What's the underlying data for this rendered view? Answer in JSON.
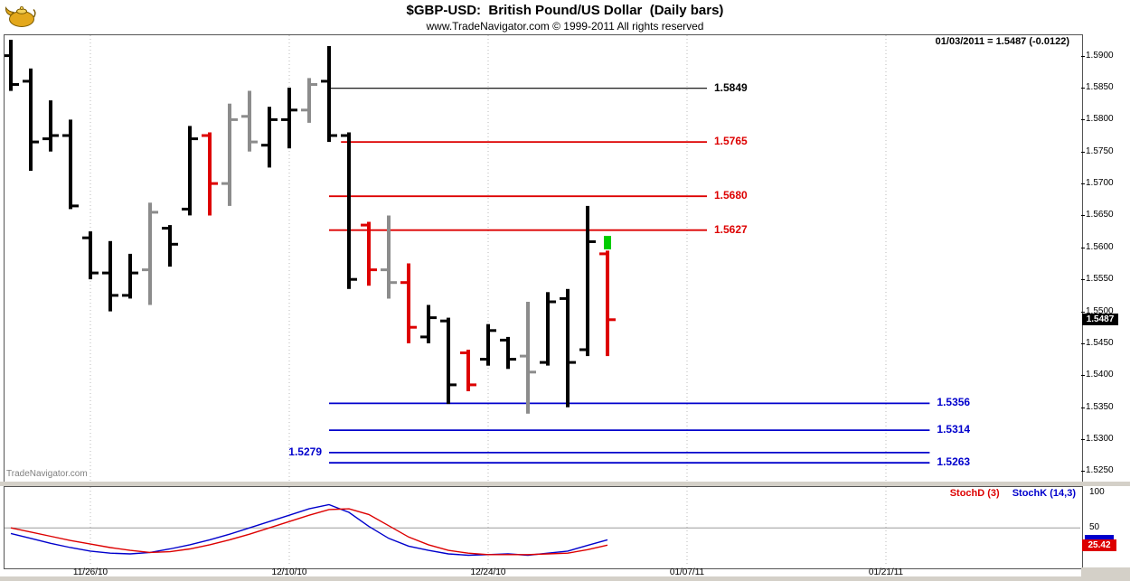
{
  "header": {
    "title": "$GBP-USD:  British Pound/US Dollar  (Daily bars)",
    "copyright": "www.TradeNavigator.com © 1999-2011 All rights reserved",
    "quote_readout": "01/03/2011 = 1.5487 (-0.0122)"
  },
  "main_panel": {
    "watermark": "TradeNavigator.com",
    "price_box": "1.5487"
  },
  "stoch_panel": {
    "stochd_label": "StochD (3)",
    "stochk_label": "StochK (14,3)",
    "value_box": "25.42"
  },
  "chart_data": [
    {
      "type": "ohlc-bar",
      "symbol": "$GBP-USD",
      "timeframe": "Daily bars",
      "ylim": [
        1.5235,
        1.5932
      ],
      "y_ticks": [
        "1.5900",
        "1.5850",
        "1.5800",
        "1.5750",
        "1.5700",
        "1.5650",
        "1.5600",
        "1.5550",
        "1.5500",
        "1.5450",
        "1.5400",
        "1.5350",
        "1.5300",
        "1.5250"
      ],
      "x_tick_labels": [
        "11/26/10",
        "12/10/10",
        "12/24/10",
        "01/07/11",
        "01/21/11"
      ],
      "x_tick_indices": [
        4,
        14,
        24,
        34,
        44
      ],
      "bars_format": [
        "date",
        "open",
        "high",
        "low",
        "close",
        "color"
      ],
      "bars": [
        [
          "11/22/10",
          1.59,
          1.5925,
          1.5845,
          1.5855,
          "black"
        ],
        [
          "11/23/10",
          1.586,
          1.588,
          1.572,
          1.5765,
          "black"
        ],
        [
          "11/24/10",
          1.577,
          1.583,
          1.575,
          1.5775,
          "black"
        ],
        [
          "11/25/10",
          1.5775,
          1.58,
          1.566,
          1.5665,
          "black"
        ],
        [
          "11/26/10",
          1.5615,
          1.5625,
          1.555,
          1.556,
          "black"
        ],
        [
          "11/29/10",
          1.556,
          1.561,
          1.55,
          1.5525,
          "black"
        ],
        [
          "11/30/10",
          1.5525,
          1.559,
          1.552,
          1.556,
          "black"
        ],
        [
          "12/01/10",
          1.5565,
          1.567,
          1.551,
          1.5655,
          "gray"
        ],
        [
          "12/02/10",
          1.563,
          1.5635,
          1.557,
          1.5605,
          "black"
        ],
        [
          "12/03/10",
          1.566,
          1.579,
          1.565,
          1.577,
          "black"
        ],
        [
          "12/06/10",
          1.5775,
          1.578,
          1.565,
          1.57,
          "red"
        ],
        [
          "12/07/10",
          1.57,
          1.5825,
          1.5665,
          1.58,
          "gray"
        ],
        [
          "12/08/10",
          1.5805,
          1.5845,
          1.575,
          1.5765,
          "gray"
        ],
        [
          "12/09/10",
          1.576,
          1.582,
          1.5725,
          1.58,
          "black"
        ],
        [
          "12/10/10",
          1.58,
          1.585,
          1.5755,
          1.5815,
          "black"
        ],
        [
          "12/13/10",
          1.5815,
          1.5865,
          1.5795,
          1.5855,
          "gray"
        ],
        [
          "12/14/10",
          1.586,
          1.5915,
          1.5765,
          1.5775,
          "black"
        ],
        [
          "12/15/10",
          1.5775,
          1.578,
          1.5535,
          1.555,
          "black"
        ],
        [
          "12/16/10",
          1.5635,
          1.564,
          1.554,
          1.5565,
          "red"
        ],
        [
          "12/17/10",
          1.5565,
          1.565,
          1.552,
          1.5545,
          "gray"
        ],
        [
          "12/20/10",
          1.5545,
          1.5575,
          1.545,
          1.5475,
          "red"
        ],
        [
          "12/21/10",
          1.546,
          1.551,
          1.545,
          1.549,
          "black"
        ],
        [
          "12/22/10",
          1.5485,
          1.549,
          1.5355,
          1.5385,
          "black"
        ],
        [
          "12/23/10",
          1.5435,
          1.544,
          1.5375,
          1.5385,
          "red"
        ],
        [
          "12/24/10",
          1.5425,
          1.548,
          1.5415,
          1.547,
          "black"
        ],
        [
          "12/27/10",
          1.5455,
          1.546,
          1.541,
          1.5425,
          "black"
        ],
        [
          "12/28/10",
          1.543,
          1.5515,
          1.534,
          1.5405,
          "gray"
        ],
        [
          "12/29/10",
          1.542,
          1.553,
          1.5415,
          1.5515,
          "black"
        ],
        [
          "12/30/10",
          1.552,
          1.5535,
          1.535,
          1.542,
          "black"
        ],
        [
          "12/31/10",
          1.544,
          1.5665,
          1.543,
          1.5609,
          "black"
        ],
        [
          "01/03/11",
          1.559,
          1.5595,
          1.543,
          1.5487,
          "red"
        ]
      ],
      "bar_colors": {
        "black": "#000000",
        "red": "#dd0000",
        "gray": "#8c8c8c"
      },
      "hlines": [
        {
          "price": 1.5849,
          "label": "1.5849",
          "color": "#000000",
          "from": 16,
          "to": 35,
          "side": "right",
          "width": 1.2
        },
        {
          "price": 1.5765,
          "label": "1.5765",
          "color": "#dd0000",
          "from": 16.6,
          "to": 35,
          "side": "right",
          "width": 1.8
        },
        {
          "price": 1.568,
          "label": "1.5680",
          "color": "#dd0000",
          "from": 16,
          "to": 35,
          "side": "right",
          "width": 1.8
        },
        {
          "price": 1.5627,
          "label": "1.5627",
          "color": "#dd0000",
          "from": 16,
          "to": 35,
          "side": "right",
          "width": 1.8
        },
        {
          "price": 1.5356,
          "label": "1.5356",
          "color": "#0000cc",
          "from": 16,
          "to": 46.2,
          "side": "right",
          "width": 1.8
        },
        {
          "price": 1.5314,
          "label": "1.5314",
          "color": "#0000cc",
          "from": 16,
          "to": 46.2,
          "side": "right",
          "width": 1.8
        },
        {
          "price": 1.5279,
          "label": "1.5279",
          "color": "#0000cc",
          "from": 16,
          "to": 46.2,
          "side": "left",
          "width": 1.8
        },
        {
          "price": 1.5263,
          "label": "1.5263",
          "color": "#0000cc",
          "from": 16,
          "to": 46.2,
          "side": "right",
          "width": 1.8
        }
      ],
      "last_date": "01/03/2011",
      "last_price": 1.5487,
      "last_change": -0.0122,
      "signal_marker": {
        "index": 30,
        "price_top": 1.5618,
        "price_bottom": 1.5597,
        "color": "#00cc00"
      }
    },
    {
      "type": "line",
      "title": "Stochastics",
      "ylim": [
        -5,
        108
      ],
      "y_ticks": [
        "100",
        "50"
      ],
      "ref_line": 50,
      "series": [
        {
          "name": "StochK (14,3)",
          "key": "stochk-line",
          "color": "#0000cc",
          "values": [
            42,
            35,
            28,
            22,
            17,
            14,
            13,
            15,
            20,
            26,
            33,
            41,
            50,
            59,
            68,
            77,
            83,
            72,
            52,
            35,
            24,
            18,
            13,
            11,
            12,
            13,
            11,
            14,
            17,
            25,
            33
          ]
        },
        {
          "name": "StochD (3)",
          "key": "stochd-line",
          "color": "#dd0000",
          "last_value": 25.42,
          "values": [
            50,
            44,
            38,
            32,
            27,
            22,
            18,
            15,
            16,
            20,
            26,
            33,
            41,
            50,
            59,
            68,
            76,
            77,
            69,
            53,
            37,
            26,
            18,
            14,
            12,
            12,
            12,
            13,
            14,
            19,
            25.42
          ]
        }
      ],
      "legend_position": "top-right"
    }
  ]
}
